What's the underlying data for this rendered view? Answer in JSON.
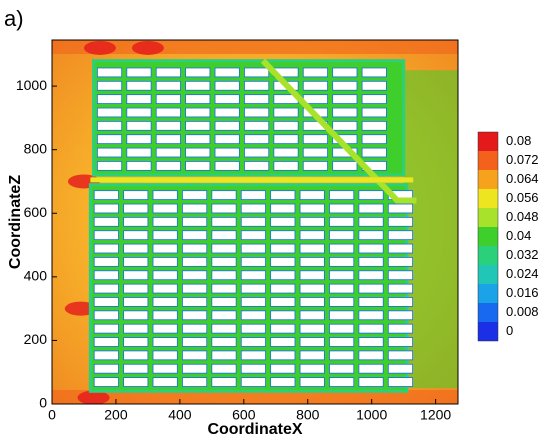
{
  "chart_data": {
    "type": "contour",
    "panel_label": "a)",
    "x_label": "CoordinateX",
    "y_label": "CoordinateZ",
    "xlim": [
      0,
      1270
    ],
    "ylim": [
      0,
      1145
    ],
    "xticks": [
      0,
      200,
      400,
      600,
      800,
      1000,
      1200
    ],
    "yticks": [
      0,
      200,
      400,
      600,
      800,
      1000
    ],
    "colorbar": {
      "levels": [
        0.08,
        0.072,
        0.064,
        0.056,
        0.048,
        0.04,
        0.032,
        0.024,
        0.016,
        0.008,
        0
      ],
      "colors": [
        "#e3191b",
        "#f2621c",
        "#f7a21d",
        "#ece51f",
        "#a8e22a",
        "#3fcf2c",
        "#2bd07a",
        "#21c6b6",
        "#1ba3e8",
        "#1869ef",
        "#1a2fe6"
      ]
    }
  }
}
